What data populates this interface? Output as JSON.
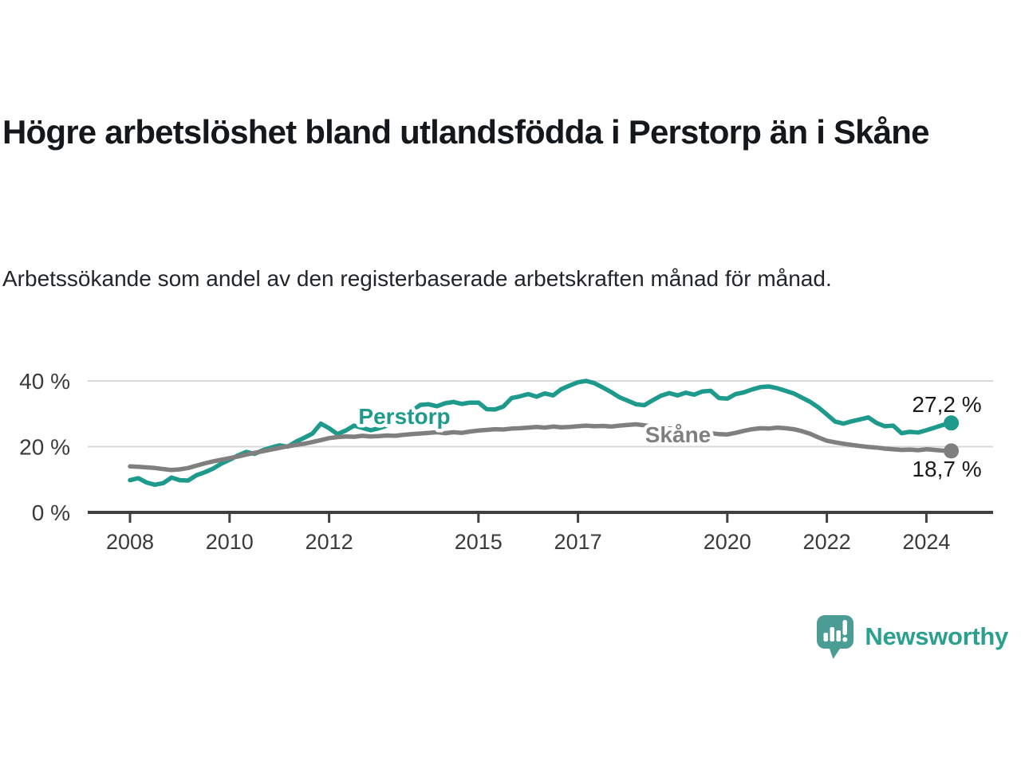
{
  "title": "Högre arbetslöshet bland utlandsfödda i Perstorp än i Skåne",
  "subtitle": "Arbetssökande som andel av den registerbaserade arbetskraften månad för månad.",
  "footer": {
    "brand": "Newsworthy",
    "logo_icon": "speech-bubble-bar-chart"
  },
  "colors": {
    "perstorp": "#1d9a8b",
    "skane": "#7f7f7f",
    "grid": "#d9d9d9",
    "axis": "#404040",
    "tick_text": "#3a3a3a",
    "value_text": "#1a1a1a",
    "logo": "#4b9c94",
    "logo_text": "#2ba08f"
  },
  "chart_data": {
    "type": "line",
    "title": "Högre arbetslöshet bland utlandsfödda i Perstorp än i Skåne",
    "xlabel": "",
    "ylabel": "",
    "grid": "horizontal-only",
    "legend": "inline-labels-on-lines",
    "x_unit": "year-monthly-series",
    "start_year": 2008,
    "end_year_approx": 2024.5,
    "points_per_year": 6,
    "x_ticks": [
      2008,
      2010,
      2012,
      2015,
      2017,
      2020,
      2022,
      2024
    ],
    "y_ticks": [
      {
        "value": 0,
        "label": "0 %"
      },
      {
        "value": 20,
        "label": "20 %"
      },
      {
        "value": 40,
        "label": "40 %"
      }
    ],
    "ylim": [
      0,
      44
    ],
    "series": [
      {
        "name": "Perstorp",
        "color": "#1d9a8b",
        "end_value": 27.2,
        "end_label": "27,2 %",
        "values": [
          9.8,
          10.4,
          9.1,
          8.4,
          8.9,
          10.6,
          9.8,
          9.7,
          11.3,
          12.2,
          13.3,
          14.8,
          16.0,
          17.3,
          18.4,
          17.8,
          18.9,
          19.7,
          20.4,
          20.0,
          21.5,
          22.7,
          24.0,
          27.0,
          25.6,
          23.8,
          24.9,
          26.4,
          25.7,
          25.0,
          25.6,
          26.4,
          27.3,
          28.8,
          30.9,
          32.7,
          32.9,
          32.3,
          33.2,
          33.6,
          33.0,
          33.4,
          33.4,
          31.4,
          31.3,
          32.2,
          34.8,
          35.3,
          36.0,
          35.2,
          36.2,
          35.6,
          37.5,
          38.6,
          39.6,
          40.0,
          39.3,
          38.0,
          36.6,
          35.0,
          34.0,
          32.9,
          32.6,
          34.1,
          35.5,
          36.3,
          35.6,
          36.4,
          35.8,
          36.8,
          37.0,
          34.8,
          34.6,
          36.0,
          36.5,
          37.4,
          38.1,
          38.3,
          37.8,
          37.0,
          36.2,
          34.9,
          33.6,
          31.9,
          29.8,
          27.6,
          27.0,
          27.7,
          28.3,
          28.9,
          27.2,
          26.2,
          26.4,
          24.1,
          24.5,
          24.3,
          25.0,
          25.8,
          26.6,
          27.2
        ]
      },
      {
        "name": "Skåne",
        "color": "#7f7f7f",
        "end_value": 18.7,
        "end_label": "18,7 %",
        "values": [
          14.0,
          13.9,
          13.7,
          13.5,
          13.2,
          12.9,
          13.1,
          13.5,
          14.2,
          14.9,
          15.5,
          16.0,
          16.5,
          17.0,
          17.6,
          18.1,
          18.6,
          19.1,
          19.6,
          20.1,
          20.5,
          20.9,
          21.4,
          22.0,
          22.6,
          22.9,
          23.1,
          23.0,
          23.3,
          23.1,
          23.2,
          23.4,
          23.3,
          23.6,
          23.8,
          24.0,
          24.2,
          24.4,
          24.1,
          24.4,
          24.2,
          24.6,
          24.9,
          25.1,
          25.3,
          25.2,
          25.5,
          25.6,
          25.8,
          26.0,
          25.8,
          26.1,
          25.9,
          26.0,
          26.2,
          26.4,
          26.2,
          26.3,
          26.1,
          26.4,
          26.6,
          26.8,
          26.5,
          26.1,
          25.8,
          25.5,
          25.3,
          25.0,
          24.7,
          24.4,
          24.1,
          23.8,
          23.7,
          24.2,
          24.8,
          25.3,
          25.6,
          25.5,
          25.8,
          25.6,
          25.3,
          24.7,
          23.9,
          22.8,
          21.8,
          21.3,
          20.9,
          20.5,
          20.2,
          19.9,
          19.7,
          19.4,
          19.2,
          19.0,
          19.1,
          18.9,
          19.2,
          19.0,
          18.8,
          18.7
        ]
      }
    ]
  }
}
